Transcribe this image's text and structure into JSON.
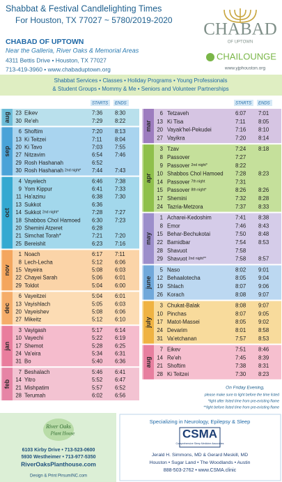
{
  "header": {
    "title": "Shabbat & Festival Candlelighting Times",
    "subtitle": "For Houston, TX 77027 ~ 5780/2019-2020"
  },
  "logo": {
    "name": "CHABAD",
    "sub": "OF UPTOWN"
  },
  "org": {
    "name": "CHABAD OF UPTOWN",
    "tagline": "Near the Galleria, River Oaks & Memorial Areas",
    "address": "4311 Bettis Drive • Houston, TX 77027",
    "contact": "713-419-3960 • www.chabaduptown.org"
  },
  "chai": {
    "name": "CHAILOUNGE",
    "url": "www.yjphouston.org"
  },
  "banner": [
    "Shabbat Services • Classes • Holiday Programs • Young Professionals",
    "& Student Groups • Mommy & Me • Seniors and Volunteer Partnerships"
  ],
  "table": {
    "headers": [
      "STARTS",
      "ENDS"
    ],
    "columns": [
      [
        {
          "month": "aug",
          "color": "#b9e0ec",
          "tab": "#6cbcd8",
          "rows": [
            {
              "d": 23,
              "n": "Eikev",
              "s": "7:36",
              "e": "8:30"
            },
            {
              "d": 30,
              "n": "Re'eh",
              "s": "7:29",
              "e": "8:22"
            }
          ]
        },
        {
          "month": "sep",
          "color": "#a9d4ef",
          "tab": "#4aa3d8",
          "rows": [
            {
              "d": 6,
              "n": "Shoftim",
              "s": "7:20",
              "e": "8:13"
            },
            {
              "d": 13,
              "n": "Ki Teitzei",
              "s": "7:11",
              "e": "8:04"
            },
            {
              "d": 20,
              "n": "Ki Tavo",
              "s": "7:03",
              "e": "7:55"
            },
            {
              "d": 27,
              "n": "Nitzavim",
              "s": "6:54",
              "e": "7:46"
            },
            {
              "d": 29,
              "n": "Rosh Hashanah",
              "s": "6:52",
              "e": null
            },
            {
              "d": 30,
              "n": "Rosh Hashanah",
              "x": "2nd night*",
              "s": "7:44",
              "e": "7:43"
            }
          ]
        },
        {
          "month": "oct",
          "color": "#a3d8ec",
          "tab": "#34a9d1",
          "rows": [
            {
              "d": 4,
              "n": "Vayelech",
              "s": "6:46",
              "e": "7:38"
            },
            {
              "d": 9,
              "n": "Yom Kippur",
              "s": "6:41",
              "e": "7:33"
            },
            {
              "d": 11,
              "n": "Ha'azinu",
              "s": "6:38",
              "e": "7:30"
            },
            {
              "d": 13,
              "n": "Sukkot",
              "s": "6:36",
              "e": null
            },
            {
              "d": 14,
              "n": "Sukkot",
              "x": "2nd night*",
              "s": "7:28",
              "e": "7:27"
            },
            {
              "d": 18,
              "n": "Shabbos Chol Hamoed",
              "s": "6:30",
              "e": "7:23"
            },
            {
              "d": 20,
              "n": "Shemini Atzeret",
              "s": "6:28",
              "e": null
            },
            {
              "d": 21,
              "n": "Simchat Torah*",
              "s": "7:21",
              "e": "7:20"
            },
            {
              "d": 25,
              "n": "Bereishit",
              "s": "6:23",
              "e": "7:16"
            }
          ]
        },
        {
          "month": "nov",
          "color": "#fbd4a8",
          "tab": "#f4a65e",
          "rows": [
            {
              "d": 1,
              "n": "Noach",
              "s": "6:17",
              "e": "7:11"
            },
            {
              "d": 8,
              "n": "Lech-Lecha",
              "s": "5:12",
              "e": "6:06"
            },
            {
              "d": 15,
              "n": "Vayeira",
              "s": "5:08",
              "e": "6:03"
            },
            {
              "d": 22,
              "n": "Chayei Sarah",
              "s": "5:06",
              "e": "6:01"
            },
            {
              "d": 29,
              "n": "Toldot",
              "s": "5:04",
              "e": "6:00"
            }
          ]
        },
        {
          "month": "dec",
          "color": "#fcdcb4",
          "tab": "#f5ad6a",
          "rows": [
            {
              "d": 6,
              "n": "Vayeitzei",
              "s": "5:04",
              "e": "6:01"
            },
            {
              "d": 13,
              "n": "Vayishlach",
              "s": "5:05",
              "e": "6:03"
            },
            {
              "d": 20,
              "n": "Vayeishev",
              "s": "5:08",
              "e": "6:06"
            },
            {
              "d": 27,
              "n": "Mikeitz",
              "s": "5:12",
              "e": "6:10"
            }
          ]
        },
        {
          "month": "jan",
          "color": "#f5bccd",
          "tab": "#e97d9d",
          "rows": [
            {
              "d": 3,
              "n": "Vayigash",
              "s": "5:17",
              "e": "6:14"
            },
            {
              "d": 10,
              "n": "Vayechi",
              "s": "5:22",
              "e": "6:19"
            },
            {
              "d": 17,
              "n": "Shemot",
              "s": "5:28",
              "e": "6:25"
            },
            {
              "d": 24,
              "n": "Va'eira",
              "s": "5:34",
              "e": "6:31"
            },
            {
              "d": 31,
              "n": "Bo",
              "s": "5:40",
              "e": "6:36"
            }
          ]
        },
        {
          "month": "feb",
          "color": "#f3c3d2",
          "tab": "#e684a5",
          "rows": [
            {
              "d": 7,
              "n": "Beshalach",
              "s": "5:46",
              "e": "6:41"
            },
            {
              "d": 14,
              "n": "Yitro",
              "s": "5:52",
              "e": "6:47"
            },
            {
              "d": 21,
              "n": "Mishpatim",
              "s": "5:57",
              "e": "6:52"
            },
            {
              "d": 28,
              "n": "Terumah",
              "s": "6:02",
              "e": "6:56"
            }
          ]
        }
      ],
      [
        {
          "month": "mar",
          "color": "#d6c5e3",
          "tab": "#9d7cbf",
          "rows": [
            {
              "d": 6,
              "n": "Tetzaveh",
              "s": "6:07",
              "e": "7:01"
            },
            {
              "d": 13,
              "n": "Ki Tisa",
              "s": "7:11",
              "e": "8:05"
            },
            {
              "d": 20,
              "n": "Vayak'hel-Pekudei",
              "s": "7:16",
              "e": "8:10"
            },
            {
              "d": 27,
              "n": "Vayikra",
              "s": "7:20",
              "e": "8:14"
            }
          ]
        },
        {
          "month": "apr",
          "color": "#c5e09b",
          "tab": "#8fc04b",
          "rows": [
            {
              "d": 3,
              "n": "Tzav",
              "s": "7:24",
              "e": "8:18"
            },
            {
              "d": 8,
              "n": "Passover",
              "s": "7:27",
              "e": null
            },
            {
              "d": 9,
              "n": "Passover",
              "x": "2nd night*",
              "s": "8:22",
              "e": null
            },
            {
              "d": 10,
              "n": "Shabbos Chol Hamoed",
              "s": "7:28",
              "e": "8:23"
            },
            {
              "d": 14,
              "n": "Passover",
              "x": "7th night",
              "s": "7:31",
              "e": null
            },
            {
              "d": 15,
              "n": "Passover",
              "x": "8th night*",
              "s": "8:26",
              "e": "8:26"
            },
            {
              "d": 17,
              "n": "Shemini",
              "s": "7:32",
              "e": "8:28"
            },
            {
              "d": 24,
              "n": "Tazria-Metzora",
              "s": "7:37",
              "e": "8:33"
            }
          ]
        },
        {
          "month": "may",
          "color": "#d5cce9",
          "tab": "#9c8ecb",
          "rows": [
            {
              "d": 1,
              "n": "Acharei-Kedoshim",
              "s": "7:41",
              "e": "8:38"
            },
            {
              "d": 8,
              "n": "Emor",
              "s": "7:46",
              "e": "8:43"
            },
            {
              "d": 15,
              "n": "Behar-Bechukotai",
              "s": "7:50",
              "e": "8:48"
            },
            {
              "d": 22,
              "n": "Bamidbar",
              "s": "7:54",
              "e": "8:53"
            },
            {
              "d": 28,
              "n": "Shavuot",
              "s": "7:58",
              "e": null
            },
            {
              "d": 29,
              "n": "Shavuot",
              "x": "2nd night**",
              "s": "7:58",
              "e": "8:57"
            }
          ]
        },
        {
          "month": "june",
          "color": "#bcd8f1",
          "tab": "#70a8da",
          "rows": [
            {
              "d": 5,
              "n": "Naso",
              "s": "8:02",
              "e": "9:01"
            },
            {
              "d": 12,
              "n": "Behaalotecha",
              "s": "8:05",
              "e": "9:04"
            },
            {
              "d": 19,
              "n": "Shlach",
              "s": "8:07",
              "e": "9:06"
            },
            {
              "d": 26,
              "n": "Korach",
              "s": "8:08",
              "e": "9:07"
            }
          ]
        },
        {
          "month": "july",
          "color": "#f8db9c",
          "tab": "#efb342",
          "rows": [
            {
              "d": 3,
              "n": "Chukat-Balak",
              "s": "8:08",
              "e": "9:07"
            },
            {
              "d": 10,
              "n": "Pinchas",
              "s": "8:07",
              "e": "9:05"
            },
            {
              "d": 17,
              "n": "Matot-Massei",
              "s": "8:05",
              "e": "9:02"
            },
            {
              "d": 24,
              "n": "Devarim",
              "s": "8:01",
              "e": "8:58"
            },
            {
              "d": 31,
              "n": "Va'etchanan",
              "s": "7:57",
              "e": "8:53"
            }
          ]
        },
        {
          "month": "aug",
          "color": "#f6bfcf",
          "tab": "#e77f9f",
          "rows": [
            {
              "d": 7,
              "n": "Eikev",
              "s": "7:51",
              "e": "8:46"
            },
            {
              "d": 14,
              "n": "Re'eh",
              "s": "7:45",
              "e": "8:39"
            },
            {
              "d": 21,
              "n": "Shoftim",
              "s": "7:38",
              "e": "8:31"
            },
            {
              "d": 28,
              "n": "Ki Teitzei",
              "s": "7:30",
              "e": "8:23"
            }
          ]
        }
      ]
    ]
  },
  "notes": [
    "On Friday Evening,",
    "please make sure to light before the time listed",
    "*light after listed time from pre-existing flame",
    "**light before listed time from pre-existing flame"
  ],
  "footer": {
    "plant": {
      "name": "River Oaks",
      "sub": "Plant House",
      "line1": "6103 Kirby Drive • 713-523-0600",
      "line2": "5930 Westheimer • 713-977-5350",
      "url": "RiverOaksPlanthouse.com"
    },
    "design": "Design & Print PirsumINC.com",
    "csma": {
      "specialty": "Specializing in Neurology, Epilepsy & Sleep",
      "name": "CSMA",
      "full": "Comprehensive Sleep Medicine Associates",
      "doctors": "Jerald H. Simmons, MD & Gerard Meskill, MD",
      "cities": "Houston • Sugar Land • The Woodlands • Austin",
      "contact": "888-503-2762 • www.CSMA.clinic"
    }
  }
}
